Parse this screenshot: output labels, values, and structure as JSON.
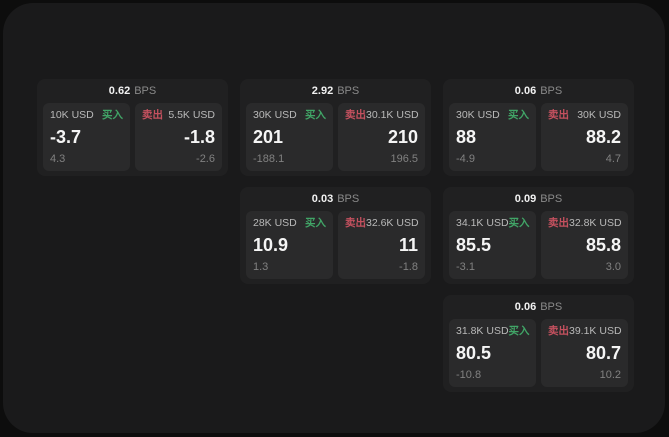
{
  "labels": {
    "bps_unit": "BPS",
    "buy": "买入",
    "sell": "卖出"
  },
  "colors": {
    "buy": "#41a567",
    "sell": "#c5515f",
    "panel_background": "#1a1a1b",
    "card_background": "#202021",
    "pane_background": "#2a2a2b"
  },
  "cards": [
    {
      "bps": "0.62",
      "buy": {
        "size": "10K USD",
        "value": "-3.7",
        "delta": "4.3"
      },
      "sell": {
        "size": "5.5K USD",
        "value": "-1.8",
        "delta": "-2.6"
      }
    },
    {
      "bps": "2.92",
      "buy": {
        "size": "30K USD",
        "value": "201",
        "delta": "-188.1"
      },
      "sell": {
        "size": "30.1K USD",
        "value": "210",
        "delta": "196.5"
      }
    },
    {
      "bps": "0.06",
      "buy": {
        "size": "30K USD",
        "value": "88",
        "delta": "-4.9"
      },
      "sell": {
        "size": "30K USD",
        "value": "88.2",
        "delta": "4.7"
      }
    },
    {
      "bps": "0.03",
      "buy": {
        "size": "28K USD",
        "value": "10.9",
        "delta": "1.3"
      },
      "sell": {
        "size": "32.6K USD",
        "value": "11",
        "delta": "-1.8"
      }
    },
    {
      "bps": "0.09",
      "buy": {
        "size": "34.1K USD",
        "value": "85.5",
        "delta": "-3.1"
      },
      "sell": {
        "size": "32.8K USD",
        "value": "85.8",
        "delta": "3.0"
      }
    },
    {
      "bps": "0.06",
      "buy": {
        "size": "31.8K USD",
        "value": "80.5",
        "delta": "-10.8"
      },
      "sell": {
        "size": "39.1K USD",
        "value": "80.7",
        "delta": "10.2"
      }
    }
  ]
}
